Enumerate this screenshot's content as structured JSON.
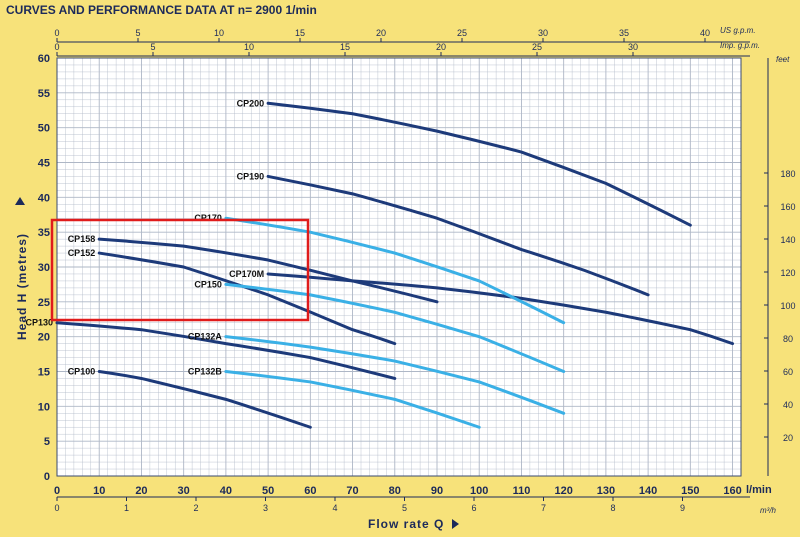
{
  "header": {
    "title": "CURVES AND PERFORMANCE DATA AT n= 2900  1/min"
  },
  "colors": {
    "background": "#f7e27a",
    "plot_bg": "#ffffff",
    "grid": "#aeb7c6",
    "dark_curve": "#1d3a7a",
    "light_curve": "#3ab0e6",
    "highlight": "#e01b1b",
    "text": "#1c2a5a"
  },
  "axes": {
    "x_label": "Flow rate  Q",
    "y_label": "Head  H    (metres)",
    "x_lpm_unit": "l/min",
    "x_m3h_unit": "m³/h",
    "feet_unit": "feet",
    "usgpm_unit": "US g.p.m.",
    "impgpm_unit": "Imp. g.p.m."
  },
  "chart_data": {
    "type": "line",
    "title": "CURVES AND PERFORMANCE DATA AT n= 2900  1/min",
    "xlabel": "Flow rate  Q",
    "ylabel": "Head  H    (metres)",
    "xlim": [
      0,
      165
    ],
    "ylim": [
      0,
      60
    ],
    "x_ticks": [
      0,
      10,
      20,
      30,
      40,
      50,
      60,
      70,
      80,
      90,
      100,
      110,
      120,
      130,
      140,
      150,
      160
    ],
    "y_ticks": [
      0,
      5,
      10,
      15,
      20,
      25,
      30,
      35,
      40,
      45,
      50,
      55,
      60
    ],
    "m3h_ticks": [
      "0",
      "1",
      "2",
      "3",
      "4",
      "5",
      "6",
      "7",
      "8",
      "9"
    ],
    "feet_ticks": [
      "20",
      "40",
      "60",
      "80",
      "100",
      "120",
      "140",
      "160",
      "180"
    ],
    "usgpm_ticks": [
      "0",
      "5",
      "10",
      "15",
      "20",
      "25",
      "30",
      "35",
      "40"
    ],
    "impgpm_ticks": [
      "0",
      "5",
      "10",
      "15",
      "20",
      "25",
      "30"
    ],
    "grid": true,
    "series": [
      {
        "name": "CP200",
        "color": "dark",
        "x": [
          50,
          70,
          90,
          110,
          130,
          150
        ],
        "y": [
          53.5,
          52,
          49.5,
          46.5,
          42,
          36
        ]
      },
      {
        "name": "CP190",
        "color": "dark",
        "x": [
          50,
          70,
          90,
          110,
          125,
          140
        ],
        "y": [
          43,
          40.5,
          37,
          32.5,
          29.5,
          26
        ]
      },
      {
        "name": "CP170M",
        "color": "dark",
        "x": [
          50,
          70,
          90,
          110,
          130,
          150,
          160
        ],
        "y": [
          29,
          28,
          27,
          25.5,
          23.5,
          21,
          19
        ]
      },
      {
        "name": "CP170",
        "color": "light",
        "x": [
          40,
          60,
          80,
          100,
          120
        ],
        "y": [
          37,
          35,
          32,
          28,
          22
        ]
      },
      {
        "name": "CP158",
        "color": "dark",
        "x": [
          10,
          30,
          50,
          70,
          90
        ],
        "y": [
          34,
          33,
          31,
          28,
          25
        ]
      },
      {
        "name": "CP152",
        "color": "dark",
        "x": [
          10,
          30,
          50,
          70,
          80
        ],
        "y": [
          32,
          30,
          26,
          21,
          19
        ]
      },
      {
        "name": "CP150",
        "color": "light",
        "x": [
          40,
          60,
          80,
          100,
          120
        ],
        "y": [
          27.5,
          26,
          23.5,
          20,
          15
        ]
      },
      {
        "name": "CP130",
        "color": "dark",
        "x": [
          0,
          20,
          40,
          60,
          80
        ],
        "y": [
          22,
          21,
          19,
          17,
          14
        ]
      },
      {
        "name": "CP132A",
        "color": "light",
        "x": [
          40,
          60,
          80,
          100,
          120
        ],
        "y": [
          20,
          18.5,
          16.5,
          13.5,
          9
        ]
      },
      {
        "name": "CP132B",
        "color": "light",
        "x": [
          40,
          60,
          80,
          100
        ],
        "y": [
          15,
          13.5,
          11,
          7
        ]
      },
      {
        "name": "CP100",
        "color": "dark",
        "x": [
          10,
          20,
          40,
          60
        ],
        "y": [
          15,
          14,
          11,
          7
        ]
      }
    ]
  }
}
